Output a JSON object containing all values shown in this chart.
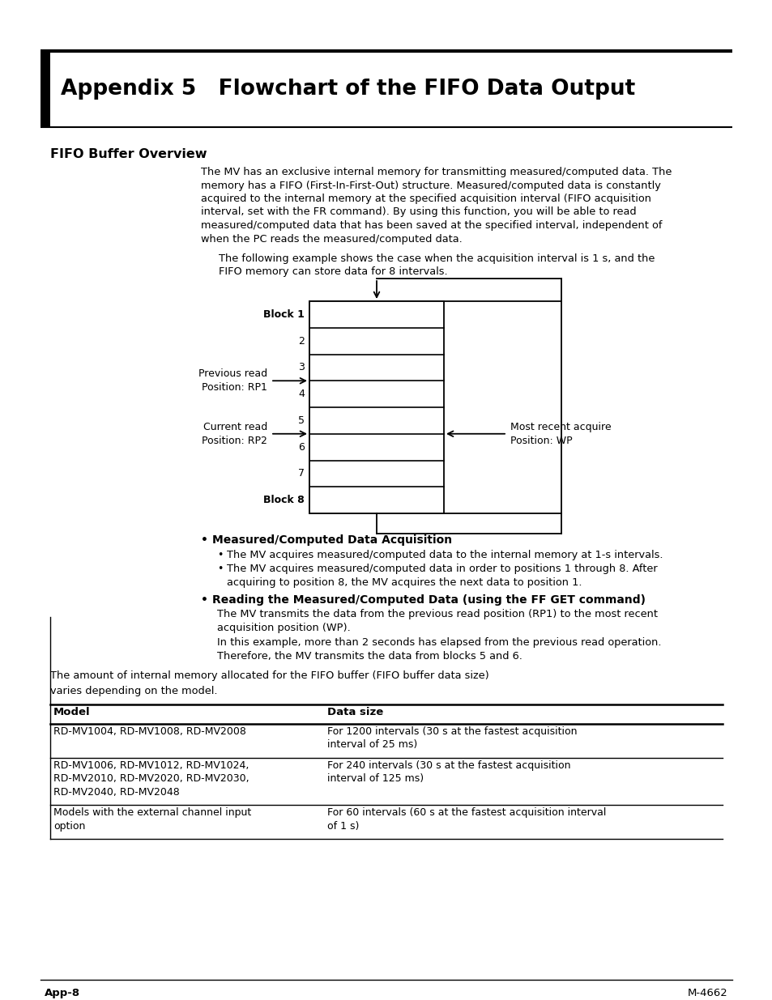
{
  "bg_color": "#ffffff",
  "title_text": "Appendix 5   Flowchart of the FIFO Data Output",
  "section_title": "FIFO Buffer Overview",
  "body_para1_lines": [
    "The MV has an exclusive internal memory for transmitting measured/computed data. The",
    "memory has a FIFO (First-In-First-Out) structure. Measured/computed data is constantly",
    "acquired to the internal memory at the specified acquisition interval (FIFO acquisition",
    "interval, set with the FR command). By using this function, you will be able to read",
    "measured/computed data that has been saved at the specified interval, independent of",
    "when the PC reads the measured/computed data."
  ],
  "body_para2_lines": [
    "The following example shows the case when the acquisition interval is 1 s, and the",
    "FIFO memory can store data for 8 intervals."
  ],
  "block_labels": [
    "Block 1",
    "2",
    "3",
    "4",
    "5",
    "6",
    "7",
    "Block 8"
  ],
  "prev_read_lines": [
    "Previous read",
    "Position: RP1"
  ],
  "curr_read_lines": [
    "Current read",
    "Position: RP2"
  ],
  "most_recent_lines": [
    "Most recent acquire",
    "Position: WP"
  ],
  "bullet1_title": "Measured/Computed Data Acquisition",
  "bullet1_sub1": "The MV acquires measured/computed data to the internal memory at 1-s intervals.",
  "bullet1_sub2a": "The MV acquires measured/computed data in order to positions 1 through 8. After",
  "bullet1_sub2b": "acquiring to position 8, the MV acquires the next data to position 1.",
  "bullet2_title": "Reading the Measured/Computed Data (using the FF GET command)",
  "bullet2_body": [
    "The MV transmits the data from the previous read position (RP1) to the most recent",
    "acquisition position (WP).",
    "In this example, more than 2 seconds has elapsed from the previous read operation.",
    "Therefore, the MV transmits the data from blocks 5 and 6."
  ],
  "table_intro_lines": [
    "The amount of internal memory allocated for the FIFO buffer (FIFO buffer data size)",
    "varies depending on the model."
  ],
  "table_headers": [
    "Model",
    "Data size"
  ],
  "table_col1": [
    "RD-MV1004, RD-MV1008, RD-MV2008",
    "RD-MV1006, RD-MV1012, RD-MV1024,\nRD-MV2010, RD-MV2020, RD-MV2030,\nRD-MV2040, RD-MV2048",
    "Models with the external channel input\noption"
  ],
  "table_col2": [
    "For 1200 intervals (30 s at the fastest acquisition\ninterval of 25 ms)",
    "For 240 intervals (30 s at the fastest acquisition\ninterval of 125 ms)",
    "For 60 intervals (60 s at the fastest acquisition interval\nof 1 s)"
  ],
  "footer_left": "App-8",
  "footer_right": "M-4662"
}
